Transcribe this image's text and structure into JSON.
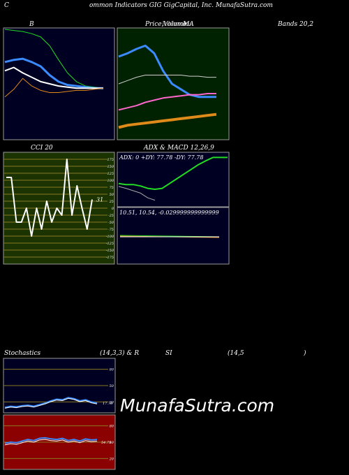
{
  "header": {
    "c": "C",
    "title": "ommon  Indicators GIG GigCapital,  Inc. MunafaSutra.com"
  },
  "panels": {
    "bollinger": {
      "title": "B",
      "bg": "#000022"
    },
    "price": {
      "title_a": "Price,",
      "title_b": "Volume",
      "title_c": "MA",
      "bg": "#002200",
      "over_text": "Ichimoku"
    },
    "bands": {
      "title": "Bands 20,2"
    },
    "cci": {
      "title": "CCI 20",
      "bg": "#1a3300",
      "last_value": "31"
    },
    "adx": {
      "title": "ADX  & MACD 12,26,9",
      "bg": "#000022",
      "readout": "ADX: 0  +DY: 77.78  -DY: 77.78",
      "macd_readout": "10.51,  10.54,  -0.029999999999999"
    },
    "stoch": {
      "title_a": "Stochastics",
      "title_b": "(14,3,3) & R",
      "title_c": "SI",
      "title_d": "(14,5",
      "title_e": ")",
      "bg": "#000022",
      "rsi_bg": "#8b0000",
      "stoch_value": "17.78",
      "rsi_value": "54.79"
    }
  },
  "watermark": "MunafaSutra.com",
  "colors": {
    "green_grid": "#2e8b2e",
    "olive_grid": "#8a7a20",
    "blue": "#3b8bff",
    "white": "#ffffff",
    "orange": "#e08a1a",
    "lime": "#22dd22",
    "pink": "#ff66cc"
  },
  "chart_data": [
    {
      "type": "line",
      "name": "bollinger",
      "series": [
        {
          "values": [
            1.0,
            0.99,
            0.98,
            0.96,
            0.93,
            0.85,
            0.72,
            0.6,
            0.52,
            0.48,
            0.47,
            0.46
          ]
        },
        {
          "values": [
            0.7,
            0.72,
            0.73,
            0.7,
            0.66,
            0.58,
            0.52,
            0.49,
            0.48,
            0.47,
            0.46,
            0.46
          ]
        },
        {
          "values": [
            0.62,
            0.65,
            0.6,
            0.56,
            0.52,
            0.5,
            0.48,
            0.47,
            0.46,
            0.46,
            0.46,
            0.46
          ]
        },
        {
          "values": [
            0.38,
            0.45,
            0.55,
            0.48,
            0.44,
            0.42,
            0.42,
            0.43,
            0.44,
            0.44,
            0.45,
            0.46
          ]
        }
      ]
    },
    {
      "type": "line",
      "name": "price",
      "series": [
        {
          "values": [
            0.75,
            0.78,
            0.82,
            0.85,
            0.78,
            0.62,
            0.5,
            0.45,
            0.4,
            0.38,
            0.38,
            0.38
          ]
        },
        {
          "values": [
            0.5,
            0.53,
            0.56,
            0.58,
            0.58,
            0.58,
            0.58,
            0.58,
            0.57,
            0.57,
            0.56,
            0.56
          ]
        },
        {
          "values": [
            0.26,
            0.28,
            0.3,
            0.33,
            0.35,
            0.37,
            0.38,
            0.39,
            0.4,
            0.4,
            0.41,
            0.41
          ]
        },
        {
          "values": [
            0.1,
            0.12,
            0.13,
            0.14,
            0.15,
            0.16,
            0.17,
            0.18,
            0.19,
            0.2,
            0.21,
            0.22
          ]
        }
      ]
    },
    {
      "type": "line",
      "name": "cci",
      "yticks": [
        "175",
        "150",
        "125",
        "100",
        "75",
        "50",
        "25",
        "0",
        "-25",
        "-50",
        "-75",
        "-100",
        "-125",
        "-150",
        "-175"
      ],
      "ylim": [
        -200,
        200
      ],
      "series": [
        {
          "values": [
            110,
            110,
            -50,
            -50,
            0,
            -100,
            0,
            -75,
            25,
            -50,
            0,
            -25,
            175,
            -25,
            80,
            0,
            -75,
            31
          ]
        }
      ]
    },
    {
      "type": "line",
      "name": "adx",
      "series": [
        {
          "values": [
            0.4,
            0.38,
            0.38,
            0.35,
            0.3,
            0.28,
            0.3,
            0.4,
            0.5,
            0.6,
            0.7,
            0.8,
            0.88,
            0.95,
            0.95,
            0.95
          ]
        },
        {
          "values": [
            0.34,
            0.3,
            0.25,
            0.2,
            0.1,
            0.05
          ]
        }
      ]
    },
    {
      "type": "line",
      "name": "stochastics",
      "yticks": [
        "80",
        "50",
        "20"
      ],
      "ylim": [
        0,
        100
      ],
      "series": [
        {
          "values": [
            10,
            12,
            11,
            13,
            14,
            12,
            15,
            18,
            22,
            25,
            24,
            28,
            26,
            22,
            24,
            20,
            17.78
          ]
        }
      ]
    },
    {
      "type": "line",
      "name": "rsi",
      "yticks": [
        "80",
        "50",
        "20"
      ],
      "ylim": [
        0,
        100
      ],
      "series": [
        {
          "values": [
            48,
            50,
            49,
            52,
            55,
            53,
            57,
            58,
            56,
            55,
            57,
            53,
            55,
            52,
            56,
            54,
            54.79
          ]
        }
      ]
    }
  ]
}
